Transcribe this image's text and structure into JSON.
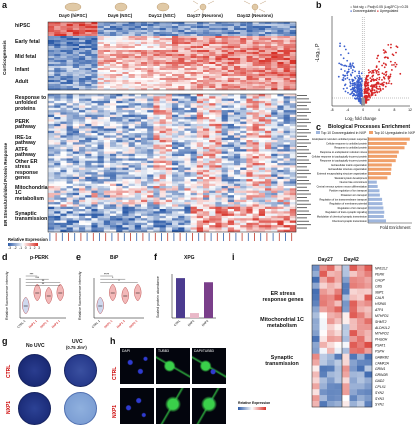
{
  "panel_a": {
    "letter": "a",
    "stage_headers": [
      "Day0 (hiPSC)",
      "Day6 (NSC)",
      "Day12 (NSC)",
      "Day27 (Neurons)",
      "Day42 (Neurons)"
    ],
    "group_top": "Corticogenesis",
    "group_bottom": "ER Stress/Unfolded Protein Response",
    "rows_top": [
      "hiPSC",
      "Early fetal",
      "Mid fetal",
      "Infant",
      "Adult"
    ],
    "rows_bottom": [
      "Response to unfolded proteins",
      "PERK pathway",
      "IRE-1α pathway",
      "ATF6 pathway",
      "Other ER stress response genes",
      "Mitochondrial 1C metabolism",
      "Synaptic transmission"
    ],
    "legend_title": "Relative Expression",
    "legend_ticks": [
      "-3",
      "-2",
      "-1",
      "0",
      "1",
      "2",
      "3"
    ]
  },
  "panel_b": {
    "letter": "b",
    "legend": [
      "Not sig",
      "Padj<0.05 |Log2FC|>=0.25",
      "Downregulated",
      "Upregulated"
    ],
    "xlabel": "Log₂ fold change",
    "ylabel": "-Log₁₀ P",
    "xticks": [
      "-8",
      "-6",
      "-4",
      "-2",
      "0",
      "2",
      "4",
      "6",
      "8",
      "10",
      "12"
    ],
    "colors": {
      "down": "#3a5fcd",
      "up": "#d62728",
      "ns": "#9a9a9a"
    }
  },
  "panel_c": {
    "letter": "c",
    "title": "Biological Processes Enrichment",
    "legend": [
      "Top 10 Downregulated in NXP",
      "Top 10 Upregulated in NXP"
    ],
    "xlabel": "Fold Enrichment",
    "terms": [
      "Endoplasmic reticulum unfolded protein response",
      "Cellular response to unfolded protein",
      "Response to unfolded protein",
      "Response to endoplasmic reticulum stress",
      "Cellular response to topologically incorrect protein",
      "Response to topologically incorrect protein",
      "Extracellular matrix organization",
      "Extracellular structure organization",
      "External encapsulating structure organization",
      "Skeletal system development",
      "Neuron fate commitment",
      "Central nervous system neuron differentiation",
      "Positive regulation of ion transport",
      "Potassium ion transport",
      "Regulation of ion transmembrane transport",
      "Regulation of membrane potential",
      "Regulation of ion transport",
      "Regulation of trans-synaptic signaling",
      "Modulation of chemical synaptic transmission",
      "Chemical synaptic transmission"
    ],
    "values": [
      9.5,
      8.8,
      8.3,
      7.0,
      6.6,
      6.3,
      5.4,
      5.3,
      5.2,
      4.4,
      2.0,
      2.2,
      2.6,
      2.7,
      3.2,
      3.3,
      3.5,
      3.7,
      3.6,
      4.1
    ],
    "colors": {
      "up": "#f0a06a",
      "down": "#9fb6dd"
    }
  },
  "panel_d": {
    "letter": "d",
    "title": "p-PERK",
    "ylabel": "Relative fluorescence intensity",
    "groups": [
      "CTRL-1",
      "NXP1-1",
      "NXP1-2",
      "NXP2-1"
    ],
    "sig": [
      "***",
      "***",
      "**",
      "**"
    ]
  },
  "panel_e": {
    "letter": "e",
    "title": "BiP",
    "ylabel": "Relative fluorescence intensity",
    "groups": [
      "CTRL-1",
      "NXP1-1",
      "NXP1-2",
      "NXP2-1"
    ],
    "sig": [
      "****",
      "*",
      "*"
    ]
  },
  "panel_f": {
    "letter": "f",
    "title": "XPG",
    "ylabel": "Scaled protein abundance",
    "groups": [
      "CTRL",
      "NXP1",
      "NXP2"
    ],
    "values": [
      145,
      18,
      130
    ]
  },
  "panel_g": {
    "letter": "g",
    "col1": "No UVC",
    "col2": "UVC",
    "col2b": "(0.75 J/m²)",
    "rows": [
      "CTRL",
      "NXP1"
    ]
  },
  "panel_h": {
    "letter": "h",
    "cols": [
      "DAPI",
      "TUBB3",
      "DAPI/TUBB3"
    ],
    "rows": [
      "CTRL",
      "NXP1"
    ]
  },
  "panel_i": {
    "letter": "i",
    "cols": [
      "Day27",
      "Day42"
    ],
    "groups": [
      "ER stress response genes",
      "Mitochondrial 1C metabolism",
      "Synaptic transmission"
    ],
    "genes": [
      "NFE2L2",
      "PERK",
      "CHOP",
      "CBS",
      "XBP1",
      "CALR",
      "HSPA5",
      "ATF4",
      "MTHFD1",
      "SHMT2",
      "ALDH1L2",
      "MTHFD2",
      "PHGDH",
      "PSAT1",
      "PSPH",
      "GABRB2",
      "CAMK2A",
      "GRIN1",
      "GRIN2B",
      "GAD2",
      "CPLX1",
      "SYN2",
      "SYN3",
      "SYN1"
    ],
    "legend_title": "Relative Expression"
  }
}
